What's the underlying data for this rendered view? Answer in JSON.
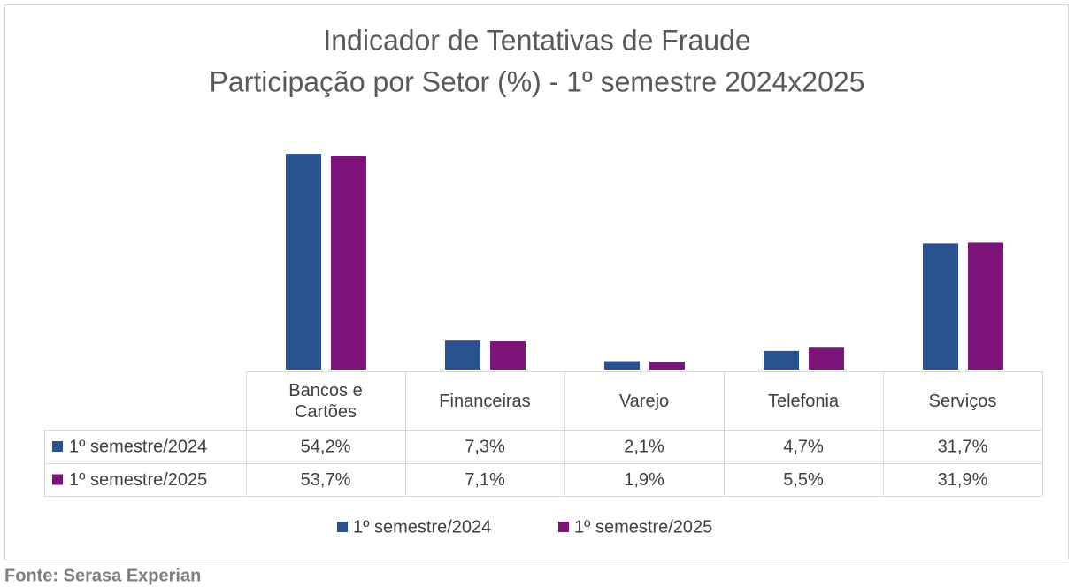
{
  "chart_data": {
    "type": "bar",
    "title": "Indicador de Tentativas de Fraude",
    "subtitle": "Participação por Setor (%) - 1º semestre 2024x2025",
    "categories": [
      "Bancos e Cartões",
      "Financeiras",
      "Varejo",
      "Telefonia",
      "Serviços"
    ],
    "series": [
      {
        "name": "1º semestre/2024",
        "color": "#2a5291",
        "values": [
          54.2,
          7.3,
          2.1,
          4.7,
          31.7
        ],
        "value_labels": [
          "54,2%",
          "7,3%",
          "2,1%",
          "4,7%",
          "31,7%"
        ]
      },
      {
        "name": "1º semestre/2025",
        "color": "#7b1378",
        "values": [
          53.7,
          7.1,
          1.9,
          5.5,
          31.9
        ],
        "value_labels": [
          "53,7%",
          "7,1%",
          "1,9%",
          "5,5%",
          "31,9%"
        ]
      }
    ],
    "ylim": [
      0,
      60
    ],
    "legend": "bottom",
    "source": "Fonte: Serasa Experian"
  }
}
